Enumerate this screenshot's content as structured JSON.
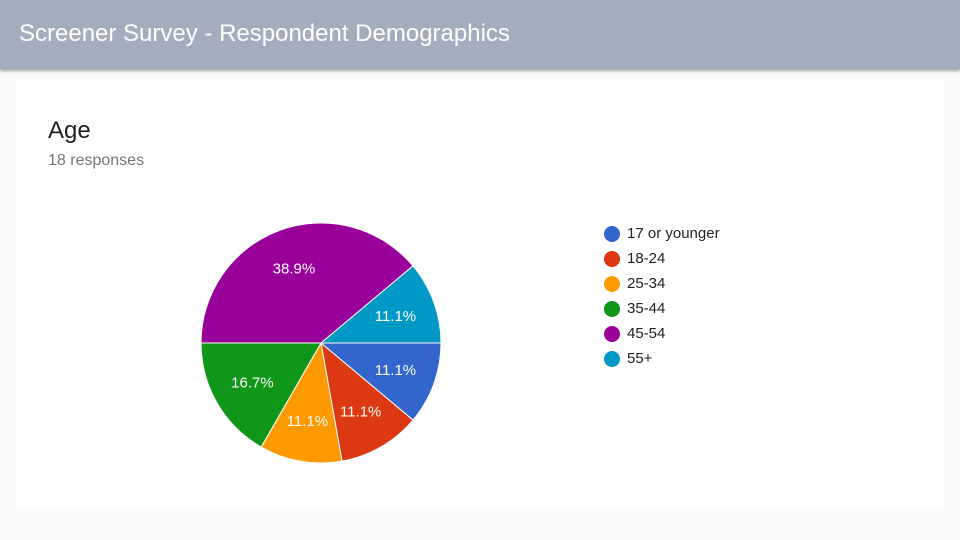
{
  "header": {
    "title": "Screener Survey - Respondent Demographics"
  },
  "question": {
    "title": "Age",
    "response_count": "18 responses"
  },
  "chart_data": {
    "type": "pie",
    "categories": [
      "17 or younger",
      "18-24",
      "25-34",
      "35-44",
      "45-54",
      "55+"
    ],
    "values": [
      11.1,
      11.1,
      11.1,
      16.7,
      38.9,
      11.1
    ],
    "labels": [
      "11.1%",
      "11.1%",
      "11.1%",
      "16.7%",
      "38.9%",
      "11.1%"
    ],
    "colors": [
      "#3366cc",
      "#dc3912",
      "#ff9900",
      "#109618",
      "#990099",
      "#0099c6"
    ],
    "legend_position": "right"
  }
}
